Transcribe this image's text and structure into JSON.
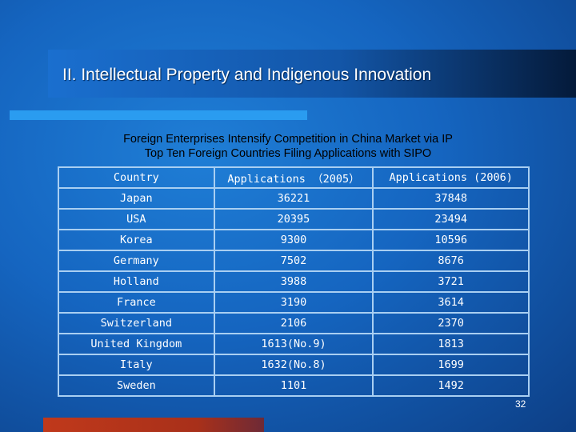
{
  "slide": {
    "title": "II. Intellectual Property and Indigenous Innovation",
    "subtitle_line1": "Foreign Enterprises Intensify Competition in China Market via IP",
    "subtitle_line2": "Top Ten Foreign Countries Filing Applications with SIPO",
    "page_number": "32"
  },
  "table": {
    "headers": [
      "Country",
      "Applications （2005）",
      "Applications (2006)"
    ],
    "rows": [
      [
        "Japan",
        "36221",
        "37848"
      ],
      [
        "USA",
        "20395",
        "23494"
      ],
      [
        "Korea",
        "9300",
        "10596"
      ],
      [
        "Germany",
        "7502",
        "8676"
      ],
      [
        "Holland",
        "3988",
        "3721"
      ],
      [
        "France",
        "3190",
        "3614"
      ],
      [
        "Switzerland",
        "2106",
        "2370"
      ],
      [
        "United Kingdom",
        "1613(No.9)",
        "1813"
      ],
      [
        "Italy",
        "1632(No.8)",
        "1699"
      ],
      [
        "Sweden",
        "1101",
        "1492"
      ]
    ]
  }
}
